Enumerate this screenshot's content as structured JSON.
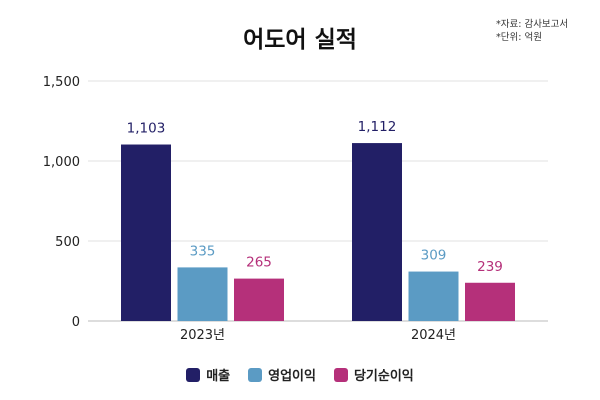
{
  "chart_data": {
    "type": "bar",
    "title": "어도어 실적",
    "notes": [
      "*자료: 감사보고서",
      "*단위: 억원"
    ],
    "categories": [
      "2023년",
      "2024년"
    ],
    "series": [
      {
        "name": "매출",
        "values": [
          1103,
          1112
        ],
        "labels": [
          "1,103",
          "1,112"
        ],
        "color": "#221f66"
      },
      {
        "name": "영업이익",
        "values": [
          335,
          309
        ],
        "labels": [
          "335",
          "309"
        ],
        "color": "#5b9bc4"
      },
      {
        "name": "당기순이익",
        "values": [
          265,
          239
        ],
        "labels": [
          "265",
          "239"
        ],
        "color": "#b5307a"
      }
    ],
    "ylim": [
      0,
      1500
    ],
    "yticks": [
      0,
      500,
      1000,
      1500
    ],
    "ytick_labels": [
      "0",
      "500",
      "1,000",
      "1,500"
    ],
    "grid": true,
    "legend": "bottom"
  }
}
